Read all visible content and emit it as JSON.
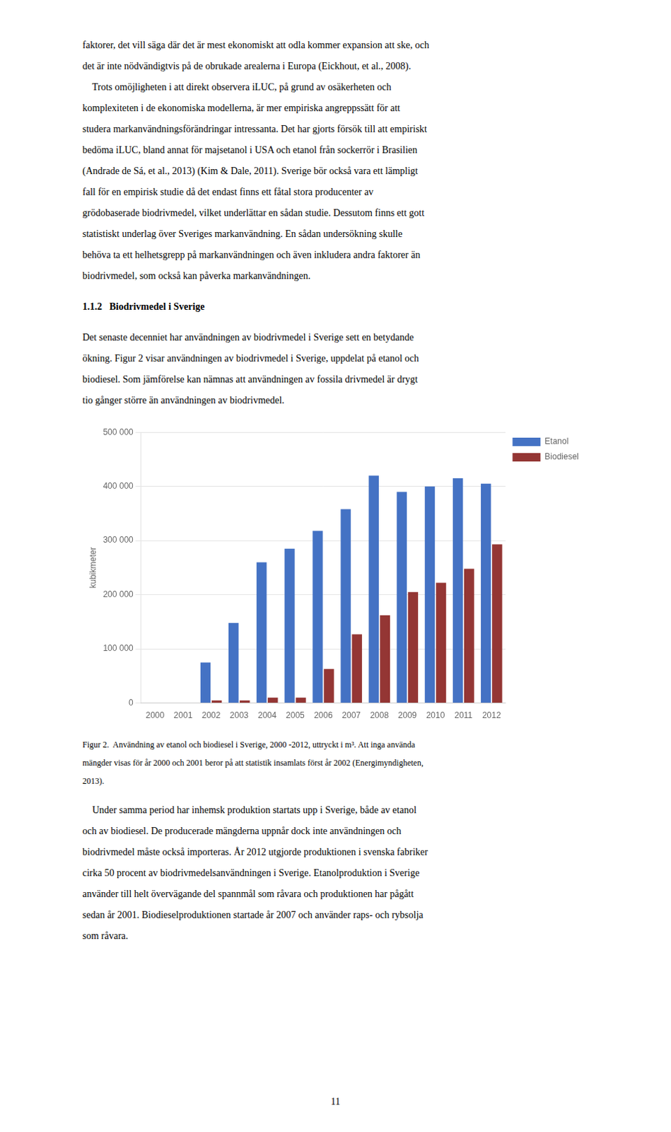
{
  "chart_data": {
    "type": "bar",
    "categories": [
      "2000",
      "2001",
      "2002",
      "2003",
      "2004",
      "2005",
      "2006",
      "2007",
      "2008",
      "2009",
      "2010",
      "2011",
      "2012"
    ],
    "series": [
      {
        "name": "Etanol",
        "color": "#4472C4",
        "values": [
          0,
          0,
          75000,
          148000,
          260000,
          285000,
          318000,
          358000,
          420000,
          390000,
          400000,
          415000,
          405000
        ]
      },
      {
        "name": "Biodiesel",
        "color": "#943634",
        "values": [
          0,
          0,
          5000,
          5000,
          10000,
          10000,
          63000,
          127000,
          162000,
          205000,
          222000,
          248000,
          293000
        ]
      }
    ],
    "ylabel": "kubikmeter",
    "ylim": [
      0,
      500000
    ],
    "yticks": [
      0,
      {
        "value": 100000,
        "label": "100 000"
      },
      {
        "value": 200000,
        "label": "200 000"
      },
      {
        "value": 300000,
        "label": "300 000"
      },
      {
        "value": 400000,
        "label": "400 000"
      },
      {
        "value": 500000,
        "label": "500 000"
      }
    ],
    "grid": true,
    "legend": "right",
    "annotations": [
      "faktorer, det vill säga där det är mest ekonomiskt att odla kommer expansion att ske, och",
      "det är inte nödvändigtvis på de obrukade arealerna i Europa (Eickhout, et al., 2008).",
      "    Trots omöjligheten i att direkt observera iLUC, på grund av osäkerheten och",
      "komplexiteten i de ekonomiska modellerna, är mer empiriska angreppssätt för att",
      "studera markanvändningsförändringar intressanta. Det har gjorts försök till att empiriskt",
      "bedöma iLUC, bland annat för majsetanol i USA och etanol från sockerrör i Brasilien",
      "(Andrade de Sá, et al., 2013) (Kim & Dale, 2011). Sverige bör också vara ett lämpligt",
      "fall för en empirisk studie då det endast finns ett fåtal stora producenter av",
      "grödobaserade biodrivmedel, vilket underlättar en sådan studie. Dessutom finns ett gott",
      "statistiskt underlag över Sveriges markanvändning. En sådan undersökning skulle",
      "behöva ta ett helhetsgrepp på markanvändningen och även inkludera andra faktorer än",
      "biodrivmedel, som också kan påverka markanvändningen.",
      "1.1.2   Biodrivmedel i Sverige",
      "Det senaste decenniet har användningen av biodrivmedel i Sverige sett en betydande",
      "ökning. Figur 2 visar användningen av biodrivmedel i Sverige, uppdelat på etanol och",
      "biodiesel. Som jämförelse kan nämnas att användningen av fossila drivmedel är drygt",
      "tio gånger större än användningen av biodrivmedel.",
      "Figur 2.  Användning av etanol och biodiesel i Sverige, 2000 -2012, uttryckt i m³. Att inga använda",
      "mängder visas för år 2000 och 2001 beror på att statistik insamlats först år 2002 (Energimyndigheten,",
      "2013).",
      "    Under samma period har inhemsk produktion startats upp i Sverige, både av etanol",
      "och av biodiesel. De producerade mängderna uppnår dock inte användningen och",
      "biodrivmedel måste också importeras. År 2012 utgjorde produktionen i svenska fabriker",
      "cirka 50 procent av biodrivmedelsanvändningen i Sverige. Etanolproduktion i Sverige",
      "använder till helt övervägande del spannmål som råvara och produktionen har pågått",
      "sedan år 2001. Biodieselproduktionen startade år 2007 och använder raps- och rybsolja",
      "som råvara.",
      "11"
    ]
  }
}
